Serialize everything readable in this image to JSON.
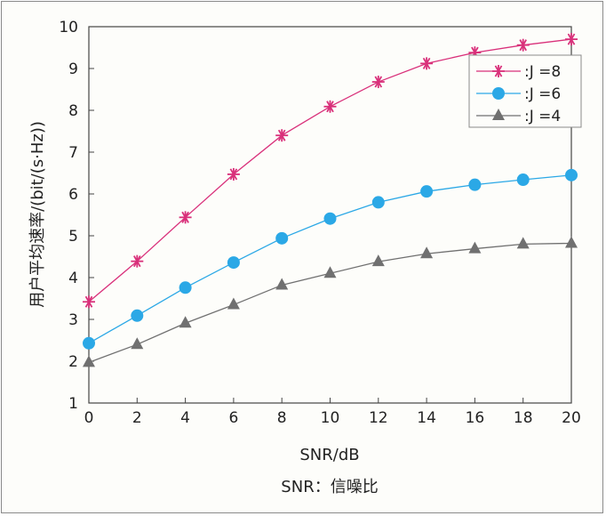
{
  "chart_data": {
    "type": "line",
    "xlabel": "SNR/dB",
    "ylabel": "用户平均速率/(bit/(s·Hz))",
    "caption": "SNR：信噪比",
    "x": [
      0,
      2,
      4,
      6,
      8,
      10,
      12,
      14,
      16,
      18,
      20
    ],
    "xlim": [
      0,
      20
    ],
    "ylim": [
      1,
      10
    ],
    "xticks": [
      0,
      2,
      4,
      6,
      8,
      10,
      12,
      14,
      16,
      18,
      20
    ],
    "yticks": [
      1,
      2,
      3,
      4,
      5,
      6,
      7,
      8,
      9,
      10
    ],
    "grid": false,
    "legend_position": "top-right",
    "series": [
      {
        "name": ":J =8",
        "color": "#d9307a",
        "marker": "asterisk",
        "values": [
          3.42,
          4.39,
          5.44,
          6.47,
          7.4,
          8.09,
          8.68,
          9.12,
          9.38,
          9.56,
          9.7
        ]
      },
      {
        "name": ":J =6",
        "color": "#2ba8e6",
        "marker": "circle",
        "values": [
          2.43,
          3.09,
          3.76,
          4.36,
          4.94,
          5.41,
          5.8,
          6.06,
          6.22,
          6.34,
          6.45
        ]
      },
      {
        "name": ":J =4",
        "color": "#707070",
        "marker": "triangle",
        "values": [
          1.97,
          2.4,
          2.91,
          3.35,
          3.82,
          4.1,
          4.38,
          4.57,
          4.69,
          4.8,
          4.82
        ]
      }
    ]
  }
}
